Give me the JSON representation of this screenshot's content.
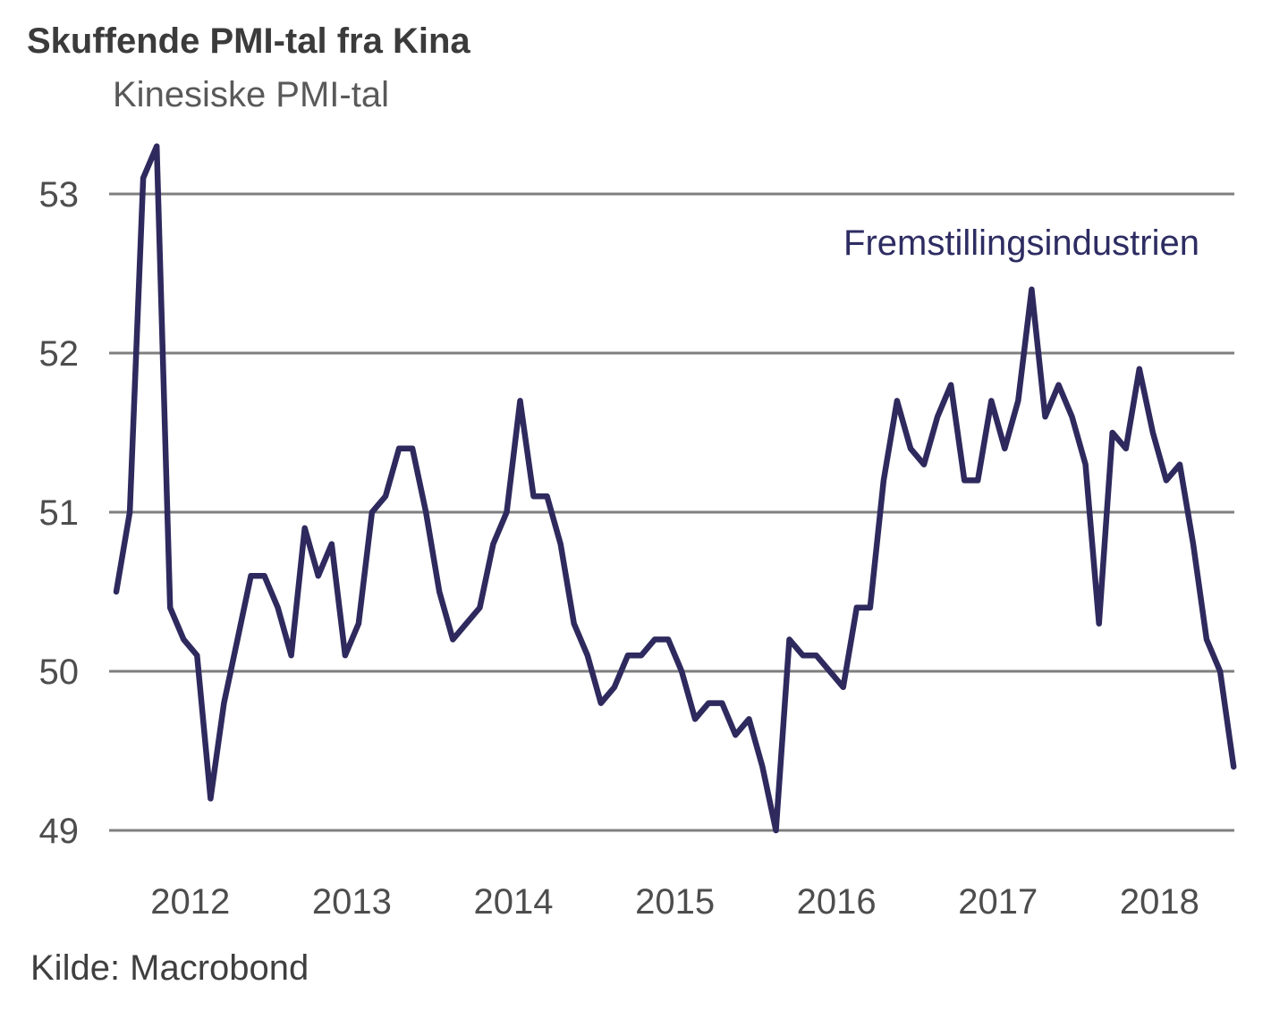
{
  "title": "Skuffende PMI-tal fra Kina",
  "subtitle": "Kinesiske PMI-tal",
  "source": "Kilde: Macrobond",
  "series_label": "Fremstillingsindustrien",
  "colors": {
    "line": "#2e2a5e",
    "grid": "#7f7f7f",
    "tick_text": "#4d4d4d",
    "title_text": "#3b3b3b",
    "subtitle_text": "#595959",
    "legend_text": "#2d2c62",
    "source_text": "#3f3f3f",
    "background": "#ffffff"
  },
  "chart_data": {
    "type": "line",
    "title": "Skuffende PMI-tal fra Kina",
    "subtitle": "Kinesiske PMI-tal",
    "xlabel": "",
    "ylabel": "",
    "grid": "horizontal",
    "legend_position": "top-right-inside",
    "y_ticks": [
      49,
      50,
      51,
      52,
      53
    ],
    "y_tick_labels": [
      "49",
      "50",
      "51",
      "52",
      "53"
    ],
    "ylim": [
      48.55,
      53.55
    ],
    "x_tick_labels": [
      "2012",
      "2013",
      "2014",
      "2015",
      "2016",
      "2017",
      "2018"
    ],
    "x_start": "2012-01",
    "x_end": "2018-12",
    "frequency": "monthly",
    "series": [
      {
        "name": "Fremstillingsindustrien",
        "values": [
          50.5,
          51.0,
          53.1,
          53.3,
          50.4,
          50.2,
          50.1,
          49.2,
          49.8,
          50.2,
          50.6,
          50.6,
          50.4,
          50.1,
          50.9,
          50.6,
          50.8,
          50.1,
          50.3,
          51.0,
          51.1,
          51.4,
          51.4,
          51.0,
          50.5,
          50.2,
          50.3,
          50.4,
          50.8,
          51.0,
          51.7,
          51.1,
          51.1,
          50.8,
          50.3,
          50.1,
          49.8,
          49.9,
          50.1,
          50.1,
          50.2,
          50.2,
          50.0,
          49.7,
          49.8,
          49.8,
          49.6,
          49.7,
          49.4,
          49.0,
          50.2,
          50.1,
          50.1,
          50.0,
          49.9,
          50.4,
          50.4,
          51.2,
          51.7,
          51.4,
          51.3,
          51.6,
          51.8,
          51.2,
          51.2,
          51.7,
          51.4,
          51.7,
          52.4,
          51.6,
          51.8,
          51.6,
          51.3,
          50.3,
          51.5,
          51.4,
          51.9,
          51.5,
          51.2,
          51.3,
          50.8,
          50.2,
          50.0,
          49.4
        ]
      }
    ]
  }
}
